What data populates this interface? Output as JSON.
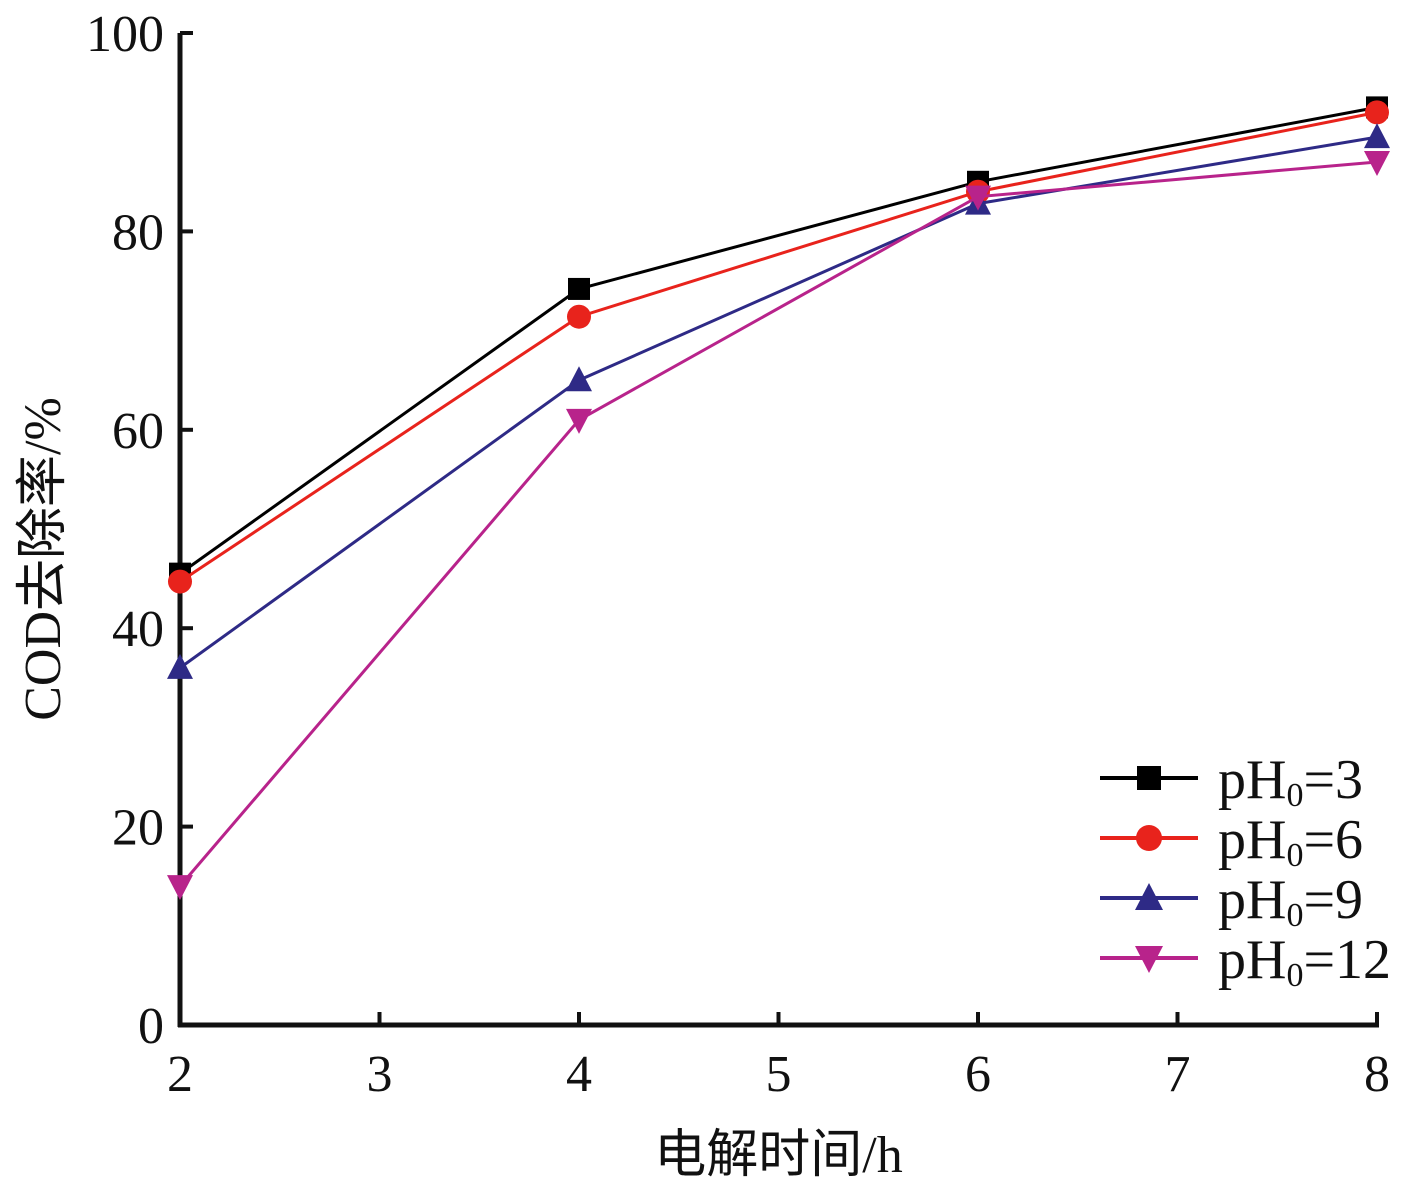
{
  "chart_data": {
    "type": "line",
    "title": "",
    "xlabel": "电解时间/h",
    "ylabel": "COD去除率/%",
    "x": [
      2,
      4,
      6,
      8
    ],
    "xlim": [
      2,
      8
    ],
    "ylim": [
      0,
      100
    ],
    "xticks": [
      2,
      3,
      4,
      5,
      6,
      7,
      8
    ],
    "yticks": [
      0,
      20,
      40,
      60,
      80,
      100
    ],
    "grid": false,
    "legend_position": "bottom-right",
    "series": [
      {
        "name": "pH0=3",
        "label_main": "pH",
        "label_sub": "0",
        "label_tail": "=3",
        "color": "#000000",
        "marker": "square",
        "values": [
          45.5,
          74.2,
          85.0,
          92.5
        ]
      },
      {
        "name": "pH0=6",
        "label_main": "pH",
        "label_sub": "0",
        "label_tail": "=6",
        "color": "#e8231c",
        "marker": "circle",
        "values": [
          44.7,
          71.4,
          84.0,
          92.0
        ]
      },
      {
        "name": "pH0=9",
        "label_main": "pH",
        "label_sub": "0",
        "label_tail": "=9",
        "color": "#2e2a86",
        "marker": "triangle-up",
        "values": [
          36.0,
          65.0,
          82.8,
          89.5
        ]
      },
      {
        "name": "pH0=12",
        "label_main": "pH",
        "label_sub": "0",
        "label_tail": "=12",
        "color": "#b8238b",
        "marker": "triangle-down",
        "values": [
          14.0,
          61.0,
          83.5,
          87.0
        ]
      }
    ]
  }
}
